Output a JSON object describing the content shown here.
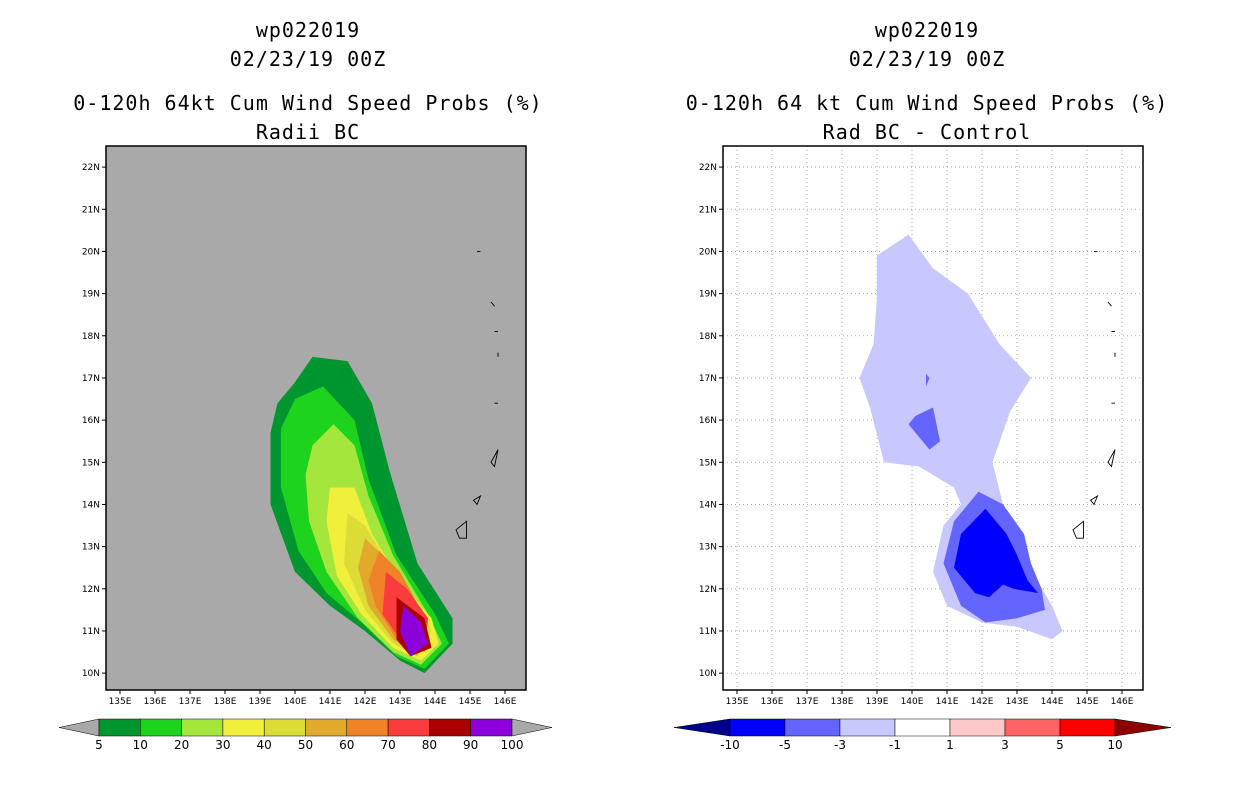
{
  "chart_data": [
    {
      "type": "contour-map",
      "storm_id": "wp022019",
      "date": "02/23/19 00Z",
      "title": "0-120h 64kt Cum Wind Speed Probs (%)",
      "subtitle": "Radii BC",
      "xlabel": "",
      "ylabel": "",
      "x_tick_labels": [
        "135E",
        "136E",
        "137E",
        "138E",
        "139E",
        "140E",
        "141E",
        "142E",
        "143E",
        "144E",
        "145E",
        "146E"
      ],
      "y_tick_labels": [
        "10N",
        "11N",
        "12N",
        "13N",
        "14N",
        "15N",
        "16N",
        "17N",
        "18N",
        "19N",
        "20N",
        "21N",
        "22N"
      ],
      "xlim": [
        134.6,
        146.6
      ],
      "ylim": [
        9.6,
        22.5
      ],
      "grid": false,
      "background_color": "#a9a9a9",
      "colorbar": {
        "levels": [
          "5",
          "10",
          "20",
          "30",
          "40",
          "50",
          "60",
          "70",
          "80",
          "90",
          "100"
        ],
        "colors": [
          "#00962f",
          "#1ed31e",
          "#a4e63c",
          "#f0f03c",
          "#dcdc36",
          "#e1aa2d",
          "#f08228",
          "#fa3c3c",
          "#aa0000",
          "#8c00dc"
        ]
      },
      "features": [
        {
          "name": "contour-5",
          "color": "#00962f",
          "points": [
            [
              140.0,
              16.9
            ],
            [
              140.5,
              17.5
            ],
            [
              141.5,
              17.4
            ],
            [
              142.2,
              16.4
            ],
            [
              142.7,
              14.8
            ],
            [
              143.5,
              12.6
            ],
            [
              144.5,
              11.3
            ],
            [
              144.5,
              10.7
            ],
            [
              143.7,
              10.0
            ],
            [
              143.0,
              10.3
            ],
            [
              142.0,
              11.0
            ],
            [
              141.0,
              11.6
            ],
            [
              140.0,
              12.4
            ],
            [
              139.3,
              14.0
            ],
            [
              139.3,
              15.7
            ],
            [
              139.5,
              16.4
            ]
          ]
        },
        {
          "name": "contour-10",
          "color": "#1ed31e",
          "points": [
            [
              140.0,
              16.5
            ],
            [
              140.8,
              16.8
            ],
            [
              141.7,
              16.0
            ],
            [
              142.1,
              14.6
            ],
            [
              142.9,
              12.8
            ],
            [
              144.0,
              11.4
            ],
            [
              144.4,
              10.7
            ],
            [
              143.7,
              10.1
            ],
            [
              142.9,
              10.4
            ],
            [
              141.9,
              11.2
            ],
            [
              140.9,
              11.9
            ],
            [
              140.1,
              12.9
            ],
            [
              139.6,
              14.4
            ],
            [
              139.6,
              15.8
            ]
          ]
        },
        {
          "name": "contour-20",
          "color": "#a4e63c",
          "points": [
            [
              140.5,
              15.4
            ],
            [
              141.1,
              15.9
            ],
            [
              141.7,
              15.4
            ],
            [
              142.1,
              14.2
            ],
            [
              142.8,
              12.8
            ],
            [
              143.8,
              11.4
            ],
            [
              144.2,
              10.7
            ],
            [
              143.6,
              10.2
            ],
            [
              142.8,
              10.5
            ],
            [
              141.8,
              11.3
            ],
            [
              140.9,
              12.4
            ],
            [
              140.4,
              13.6
            ],
            [
              140.3,
              14.7
            ]
          ]
        },
        {
          "name": "contour-30",
          "color": "#f0f03c",
          "points": [
            [
              141.0,
              14.4
            ],
            [
              141.7,
              14.4
            ],
            [
              142.2,
              13.3
            ],
            [
              143.0,
              12.2
            ],
            [
              143.9,
              11.3
            ],
            [
              144.1,
              10.7
            ],
            [
              143.6,
              10.3
            ],
            [
              142.8,
              10.6
            ],
            [
              141.9,
              11.4
            ],
            [
              141.2,
              12.3
            ],
            [
              140.9,
              13.6
            ]
          ]
        },
        {
          "name": "contour-40",
          "color": "#dcdc36",
          "points": [
            [
              141.5,
              13.8
            ],
            [
              142.0,
              13.5
            ],
            [
              142.6,
              12.7
            ],
            [
              143.4,
              11.8
            ],
            [
              143.9,
              11.0
            ],
            [
              143.5,
              10.4
            ],
            [
              142.8,
              10.7
            ],
            [
              142.0,
              11.5
            ],
            [
              141.4,
              12.6
            ]
          ]
        },
        {
          "name": "contour-50",
          "color": "#e1aa2d",
          "points": [
            [
              142.0,
              13.2
            ],
            [
              142.5,
              12.8
            ],
            [
              143.1,
              12.0
            ],
            [
              143.8,
              11.2
            ],
            [
              143.5,
              10.4
            ],
            [
              142.8,
              10.8
            ],
            [
              142.1,
              11.6
            ],
            [
              141.8,
              12.5
            ]
          ]
        },
        {
          "name": "contour-60",
          "color": "#f08228",
          "points": [
            [
              142.4,
              12.9
            ],
            [
              143.0,
              12.4
            ],
            [
              143.6,
              11.5
            ],
            [
              143.6,
              10.5
            ],
            [
              142.9,
              10.8
            ],
            [
              142.3,
              11.6
            ],
            [
              142.1,
              12.2
            ]
          ]
        },
        {
          "name": "contour-70",
          "color": "#fa3c3c",
          "points": [
            [
              142.6,
              12.4
            ],
            [
              143.2,
              12.0
            ],
            [
              143.8,
              11.3
            ],
            [
              143.7,
              10.5
            ],
            [
              143.0,
              10.8
            ],
            [
              142.5,
              11.4
            ]
          ]
        },
        {
          "name": "contour-80",
          "color": "#aa0000",
          "points": [
            [
              142.9,
              11.8
            ],
            [
              143.7,
              11.3
            ],
            [
              143.9,
              10.6
            ],
            [
              143.3,
              10.4
            ],
            [
              142.9,
              10.8
            ]
          ]
        },
        {
          "name": "contour-90",
          "color": "#8c00dc",
          "points": [
            [
              143.1,
              11.6
            ],
            [
              143.6,
              11.2
            ],
            [
              143.8,
              10.7
            ],
            [
              143.3,
              10.4
            ],
            [
              143.0,
              11.0
            ]
          ]
        }
      ]
    },
    {
      "type": "contour-map",
      "storm_id": "wp022019",
      "date": "02/23/19 00Z",
      "title": "0-120h 64 kt Cum Wind Speed Probs (%)",
      "subtitle": "Rad BC - Control",
      "xlabel": "",
      "ylabel": "",
      "x_tick_labels": [
        "135E",
        "136E",
        "137E",
        "138E",
        "139E",
        "140E",
        "141E",
        "142E",
        "143E",
        "144E",
        "145E",
        "146E"
      ],
      "y_tick_labels": [
        "10N",
        "11N",
        "12N",
        "13N",
        "14N",
        "15N",
        "16N",
        "17N",
        "18N",
        "19N",
        "20N",
        "21N",
        "22N"
      ],
      "xlim": [
        134.6,
        146.6
      ],
      "ylim": [
        9.6,
        22.5
      ],
      "grid": true,
      "background_color": "#ffffff",
      "colorbar": {
        "levels": [
          "-10",
          "-5",
          "-3",
          "-1",
          "1",
          "3",
          "5",
          "10"
        ],
        "colors": [
          "#00008c",
          "#0000ff",
          "#6464ff",
          "#c8c8ff",
          "#ffffff",
          "#ffc8c8",
          "#ff6464",
          "#ff0000",
          "#8c0000"
        ]
      },
      "features": [
        {
          "name": "contour-minus1",
          "color": "#c8c8ff",
          "points": [
            [
              139.9,
              20.4
            ],
            [
              140.6,
              19.6
            ],
            [
              141.6,
              19.0
            ],
            [
              142.5,
              17.8
            ],
            [
              143.4,
              17.0
            ],
            [
              142.8,
              16.2
            ],
            [
              142.3,
              15.0
            ],
            [
              142.6,
              14.0
            ],
            [
              143.3,
              12.6
            ],
            [
              144.0,
              11.6
            ],
            [
              144.3,
              11.0
            ],
            [
              144.0,
              10.8
            ],
            [
              143.0,
              11.1
            ],
            [
              142.0,
              11.2
            ],
            [
              141.0,
              11.6
            ],
            [
              140.6,
              12.4
            ],
            [
              140.9,
              13.5
            ],
            [
              141.4,
              14.0
            ],
            [
              141.2,
              14.4
            ],
            [
              140.2,
              14.9
            ],
            [
              139.2,
              15.0
            ],
            [
              138.8,
              16.3
            ],
            [
              138.5,
              17.0
            ],
            [
              138.9,
              17.8
            ],
            [
              139.0,
              18.9
            ],
            [
              139.0,
              19.9
            ]
          ]
        },
        {
          "name": "contour-minus3",
          "color": "#6464ff",
          "points": [
            [
              141.9,
              14.3
            ],
            [
              142.6,
              14.0
            ],
            [
              143.2,
              13.3
            ],
            [
              143.4,
              12.6
            ],
            [
              143.7,
              12.0
            ],
            [
              143.8,
              11.5
            ],
            [
              143.0,
              11.3
            ],
            [
              142.1,
              11.2
            ],
            [
              141.4,
              11.6
            ],
            [
              140.9,
              12.6
            ],
            [
              141.2,
              13.6
            ]
          ]
        },
        {
          "name": "contour-minus3-small",
          "color": "#6464ff",
          "points": [
            [
              140.1,
              16.1
            ],
            [
              140.6,
              16.3
            ],
            [
              140.8,
              15.5
            ],
            [
              140.5,
              15.3
            ],
            [
              139.9,
              15.9
            ]
          ]
        },
        {
          "name": "contour-minus3-dot",
          "color": "#6464ff",
          "points": [
            [
              140.4,
              17.1
            ],
            [
              140.5,
              17.0
            ],
            [
              140.4,
              16.8
            ]
          ]
        },
        {
          "name": "contour-minus5",
          "color": "#0000ff",
          "points": [
            [
              142.1,
              13.9
            ],
            [
              142.7,
              13.3
            ],
            [
              143.0,
              12.8
            ],
            [
              143.3,
              12.2
            ],
            [
              143.6,
              11.9
            ],
            [
              142.9,
              12.0
            ],
            [
              142.6,
              12.1
            ],
            [
              142.2,
              11.8
            ],
            [
              141.8,
              11.9
            ],
            [
              141.2,
              12.5
            ],
            [
              141.4,
              13.3
            ]
          ]
        }
      ]
    }
  ]
}
